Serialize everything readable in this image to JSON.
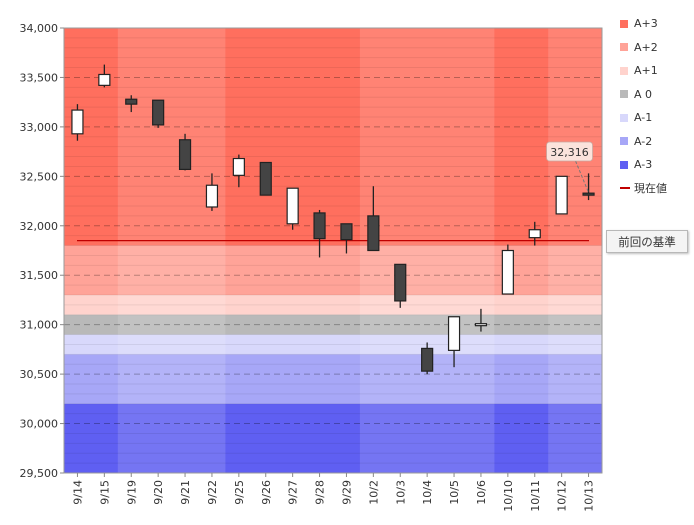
{
  "chart_data": {
    "type": "candlestick",
    "ylim": [
      29500,
      34000
    ],
    "y_ticks": [
      29500,
      30000,
      30500,
      31000,
      31500,
      32000,
      32500,
      33000,
      33500,
      34000
    ],
    "y_tick_labels": [
      "29,500",
      "30,000",
      "30,500",
      "31,000",
      "31,500",
      "32,000",
      "32,500",
      "33,000",
      "33,500",
      "34,000"
    ],
    "categories": [
      "9/14",
      "9/15",
      "9/19",
      "9/20",
      "9/21",
      "9/22",
      "9/25",
      "9/26",
      "9/27",
      "9/28",
      "9/29",
      "10/2",
      "10/3",
      "10/4",
      "10/5",
      "10/6",
      "10/10",
      "10/11",
      "10/12",
      "10/13"
    ],
    "candles": [
      {
        "open": 32930,
        "close": 33170,
        "high": 33230,
        "low": 32860
      },
      {
        "open": 33420,
        "close": 33530,
        "high": 33630,
        "low": 33400
      },
      {
        "open": 33280,
        "close": 33230,
        "high": 33320,
        "low": 33150
      },
      {
        "open": 33270,
        "close": 33020,
        "high": 33270,
        "low": 32990
      },
      {
        "open": 32870,
        "close": 32570,
        "high": 32930,
        "low": 32560
      },
      {
        "open": 32190,
        "close": 32410,
        "high": 32530,
        "low": 32150
      },
      {
        "open": 32510,
        "close": 32680,
        "high": 32720,
        "low": 32390
      },
      {
        "open": 32640,
        "close": 32310,
        "high": 32640,
        "low": 32310
      },
      {
        "open": 32020,
        "close": 32380,
        "high": 32380,
        "low": 31960
      },
      {
        "open": 32130,
        "close": 31870,
        "high": 32160,
        "low": 31680
      },
      {
        "open": 32020,
        "close": 31860,
        "high": 32020,
        "low": 31720
      },
      {
        "open": 32100,
        "close": 31750,
        "high": 32400,
        "low": 31750
      },
      {
        "open": 31610,
        "close": 31240,
        "high": 31610,
        "low": 31170
      },
      {
        "open": 30760,
        "close": 30530,
        "high": 30820,
        "low": 30500
      },
      {
        "open": 30740,
        "close": 31080,
        "high": 31080,
        "low": 30570
      },
      {
        "open": 30990,
        "close": 31010,
        "high": 31160,
        "low": 30930
      },
      {
        "open": 31310,
        "close": 31750,
        "high": 31810,
        "low": 31310
      },
      {
        "open": 31880,
        "close": 31960,
        "high": 32040,
        "low": 31800
      },
      {
        "open": 32120,
        "close": 32500,
        "high": 32500,
        "low": 32120
      },
      {
        "open": 32330,
        "close": 32316,
        "high": 32530,
        "low": 32260
      }
    ],
    "bands": [
      {
        "name": "A+3",
        "from": 31800,
        "to": 34000,
        "color": "#ff6f5e"
      },
      {
        "name": "A+2",
        "from": 31300,
        "to": 31800,
        "color": "#ffa398"
      },
      {
        "name": "A+1",
        "from": 31100,
        "to": 31300,
        "color": "#ffd3cd"
      },
      {
        "name": "A 0",
        "from": 30900,
        "to": 31100,
        "color": "#b9b9b9"
      },
      {
        "name": "A-1",
        "from": 30700,
        "to": 30900,
        "color": "#d8d8fb"
      },
      {
        "name": "A-2",
        "from": 30200,
        "to": 30700,
        "color": "#a7a7f7"
      },
      {
        "name": "A-3",
        "from": 29500,
        "to": 30200,
        "color": "#5f5ff2"
      }
    ],
    "reference_line": {
      "value": 31850,
      "color": "#c00000"
    },
    "current_value": {
      "value": 32316,
      "label": "32,316"
    },
    "week_shading": [
      {
        "start": 2,
        "end": 5
      },
      {
        "start": 11,
        "end": 15
      },
      {
        "start": 18,
        "end": 19
      }
    ]
  },
  "legend": [
    {
      "label": "A+3",
      "color": "#ff6f5e",
      "kind": "box"
    },
    {
      "label": "A+2",
      "color": "#ffa398",
      "kind": "box"
    },
    {
      "label": "A+1",
      "color": "#ffd3cd",
      "kind": "box"
    },
    {
      "label": "A 0",
      "color": "#b9b9b9",
      "kind": "box"
    },
    {
      "label": "A-1",
      "color": "#d8d8fb",
      "kind": "box"
    },
    {
      "label": "A-2",
      "color": "#a7a7f7",
      "kind": "box"
    },
    {
      "label": "A-3",
      "color": "#5f5ff2",
      "kind": "box"
    },
    {
      "label": "現在値",
      "color": "#c00000",
      "kind": "line"
    }
  ],
  "prev_basis_button": "前回の基準"
}
